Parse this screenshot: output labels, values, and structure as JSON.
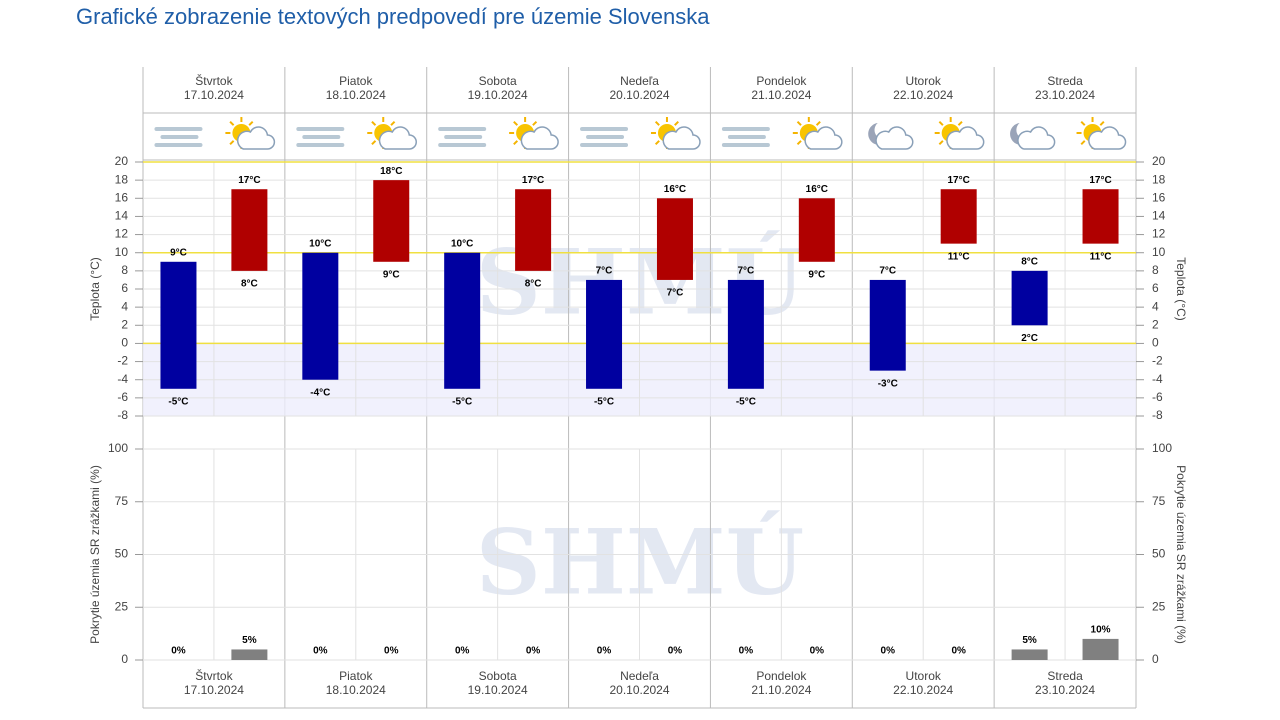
{
  "title": "Grafické zobrazenie textových predpovedí pre územie Slovenska",
  "watermark": "SHMÚ",
  "chart_data": [
    {
      "type": "floatingbar",
      "categories": [
        "Štvrtok",
        "Piatok",
        "Sobota",
        "Nedeľa",
        "Pondelok",
        "Utorok",
        "Streda"
      ],
      "dates": [
        "17.10.2024",
        "18.10.2024",
        "19.10.2024",
        "20.10.2024",
        "21.10.2024",
        "22.10.2024",
        "23.10.2024"
      ],
      "ylabel": "Teplota (°C)",
      "ylim": [
        -8,
        20
      ],
      "yticks": [
        -8,
        -6,
        -4,
        -2,
        0,
        2,
        4,
        6,
        8,
        10,
        12,
        14,
        16,
        18,
        20
      ],
      "grid": true,
      "reference_lines": [
        0,
        10,
        20
      ],
      "negative_fill": "#eeeefc",
      "series": [
        {
          "color": "#0000a0",
          "lows": [
            -5,
            -4,
            -5,
            -5,
            -5,
            -3,
            2
          ],
          "highs": [
            9,
            10,
            10,
            7,
            7,
            7,
            8
          ],
          "low_labels": [
            "-5°C",
            "-4°C",
            "-5°C",
            "-5°C",
            "-5°C",
            "-3°C",
            "2°C"
          ],
          "high_labels": [
            "9°C",
            "10°C",
            "10°C",
            "7°C",
            "7°C",
            "7°C",
            "8°C"
          ]
        },
        {
          "color": "#b00000",
          "lows": [
            8,
            9,
            8,
            7,
            9,
            11,
            11
          ],
          "highs": [
            17,
            18,
            17,
            16,
            16,
            17,
            17
          ],
          "low_labels": [
            "8°C",
            "9°C",
            "8°C",
            "7°C",
            "9°C",
            "11°C",
            "11°C"
          ],
          "high_labels": [
            "17°C",
            "18°C",
            "17°C",
            "16°C",
            "16°C",
            "17°C",
            "17°C"
          ]
        }
      ]
    },
    {
      "type": "bar",
      "categories": [
        "Štvrtok",
        "Piatok",
        "Sobota",
        "Nedeľa",
        "Pondelok",
        "Utorok",
        "Streda"
      ],
      "dates": [
        "17.10.2024",
        "18.10.2024",
        "19.10.2024",
        "20.10.2024",
        "21.10.2024",
        "22.10.2024",
        "23.10.2024"
      ],
      "ylabel": "Pokrytie územia SR zrážkami (%)",
      "ylim": [
        0,
        100
      ],
      "yticks": [
        0,
        25,
        50,
        75,
        100
      ],
      "grid": true,
      "series": [
        {
          "color": "#808080",
          "values": [
            0,
            0,
            0,
            0,
            0,
            0,
            5
          ],
          "value_labels": [
            "0%",
            "0%",
            "0%",
            "0%",
            "0%",
            "0%",
            "5%"
          ]
        },
        {
          "color": "#808080",
          "values": [
            5,
            0,
            0,
            0,
            0,
            0,
            10
          ],
          "value_labels": [
            "5%",
            "0%",
            "0%",
            "0%",
            "0%",
            "0%",
            "10%"
          ]
        }
      ]
    }
  ]
}
